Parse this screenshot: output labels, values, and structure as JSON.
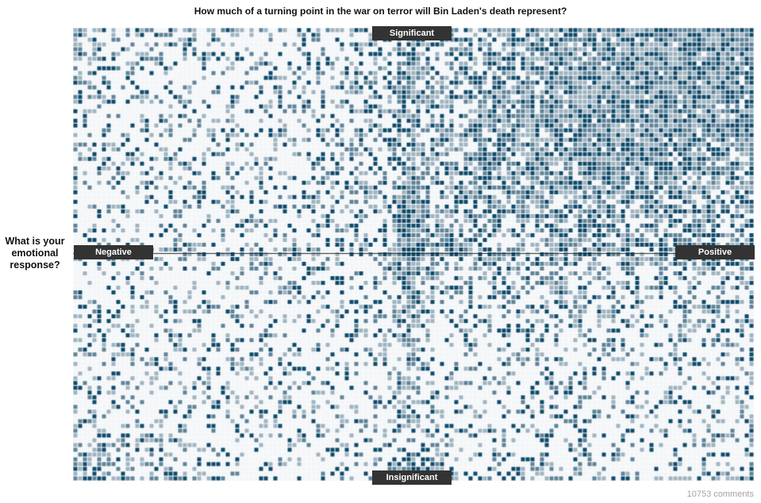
{
  "title": "How much of a turning point in the war on terror will Bin Laden's death represent?",
  "y_axis_label": "What is your emotional response?",
  "axis_tags": {
    "top": "Significant",
    "bottom": "Insignificant",
    "left": "Negative",
    "right": "Positive"
  },
  "comment_count": "10753 comments",
  "colors": {
    "dark": "#0e4a6b",
    "mid": "#5f8398",
    "light": "#9fb4c0",
    "empty": "#f3f6f8",
    "tag_bg": "#333333"
  },
  "chart_data": {
    "type": "heatmap",
    "x_axis": {
      "min_label": "Negative",
      "max_label": "Positive"
    },
    "y_axis": {
      "min_label": "Insignificant",
      "max_label": "Significant"
    },
    "columns": 143,
    "rows": 95,
    "total_responses": 10753,
    "hotspots": [
      {
        "where": "top-right",
        "density": "high"
      },
      {
        "where": "center",
        "density": "high"
      },
      {
        "where": "top-left",
        "density": "medium"
      },
      {
        "where": "bottom-left",
        "density": "medium"
      },
      {
        "where": "bottom-center",
        "density": "high"
      }
    ]
  }
}
